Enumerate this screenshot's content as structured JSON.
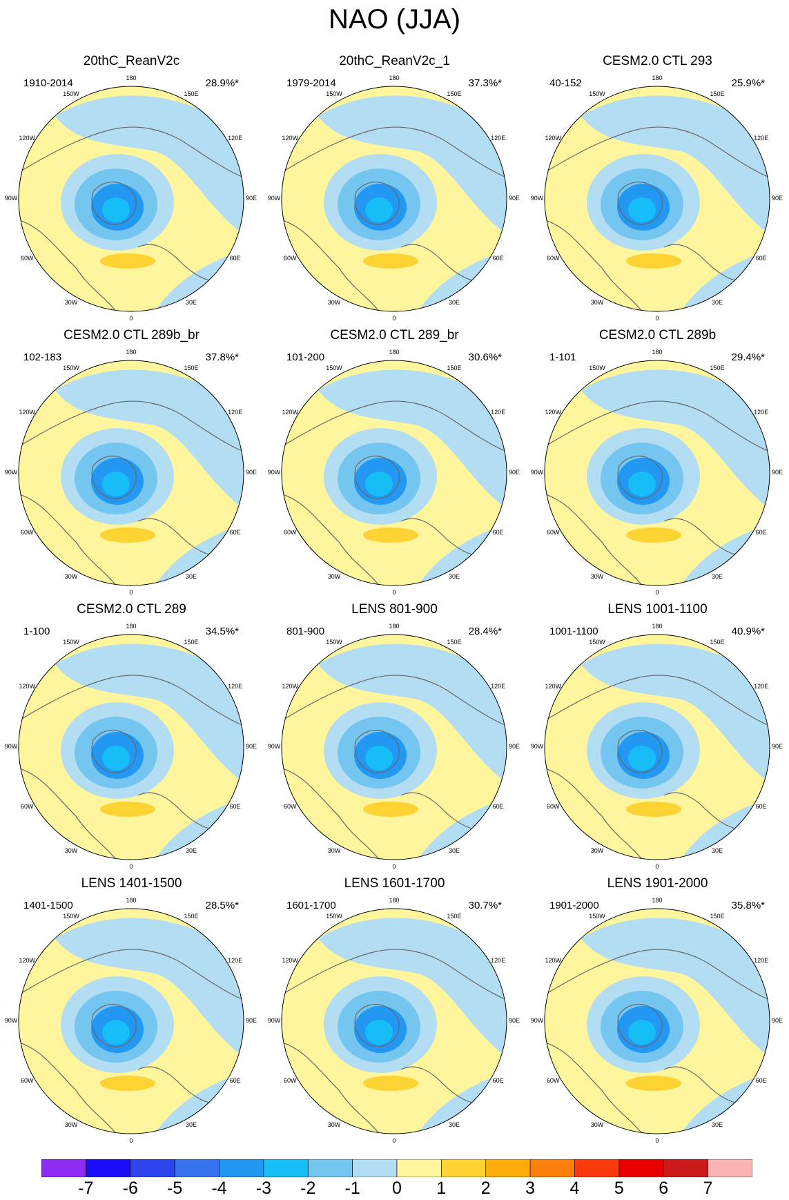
{
  "title": "NAO (JJA)",
  "colors": {
    "pos1": "#fef59d",
    "pos2": "#fdd233",
    "neg1": "#b2ddf2",
    "neg2": "#74c6f0",
    "neg3": "#17bdf7",
    "neg4": "#2298f2",
    "coast": "#666666"
  },
  "lon_labels": [
    "180",
    "150E",
    "120E",
    "90E",
    "60E",
    "30E",
    "0",
    "30W",
    "60W",
    "90W",
    "120W",
    "150W"
  ],
  "panels": [
    {
      "title": "20thC_ReanV2c",
      "period": "1910-2014",
      "variance": "28.9%*"
    },
    {
      "title": "20thC_ReanV2c_1",
      "period": "1979-2014",
      "variance": "37.3%*"
    },
    {
      "title": "CESM2.0 CTL 293",
      "period": "40-152",
      "variance": "25.9%*"
    },
    {
      "title": "CESM2.0 CTL 289b_br",
      "period": "102-183",
      "variance": "37.8%*"
    },
    {
      "title": "CESM2.0 CTL 289_br",
      "period": "101-200",
      "variance": "30.6%*"
    },
    {
      "title": "CESM2.0 CTL 289b",
      "period": "1-101",
      "variance": "29.4%*"
    },
    {
      "title": "CESM2.0 CTL 289",
      "period": "1-100",
      "variance": "34.5%*"
    },
    {
      "title": "LENS 801-900",
      "period": "801-900",
      "variance": "28.4%*"
    },
    {
      "title": "LENS 1001-1100",
      "period": "1001-1100",
      "variance": "40.9%*"
    },
    {
      "title": "LENS 1401-1500",
      "period": "1401-1500",
      "variance": "28.5%*"
    },
    {
      "title": "LENS 1601-1700",
      "period": "1601-1700",
      "variance": "30.7%*"
    },
    {
      "title": "LENS 1901-2000",
      "period": "1901-2000",
      "variance": "35.8%*"
    }
  ],
  "colorbar": {
    "labels": [
      "-7",
      "-6",
      "-5",
      "-4",
      "-3",
      "-2",
      "-1",
      "0",
      "1",
      "2",
      "3",
      "4",
      "5",
      "6",
      "7"
    ],
    "colors": [
      "#8c2cf0",
      "#1a0cf9",
      "#2c44ec",
      "#3773ec",
      "#2298f2",
      "#17bdf7",
      "#74c6f0",
      "#b2ddf2",
      "#fef59d",
      "#fdd233",
      "#fdac0d",
      "#fd800d",
      "#fd3a0d",
      "#e80000",
      "#cc1a1a",
      "#fbb3b3"
    ]
  }
}
